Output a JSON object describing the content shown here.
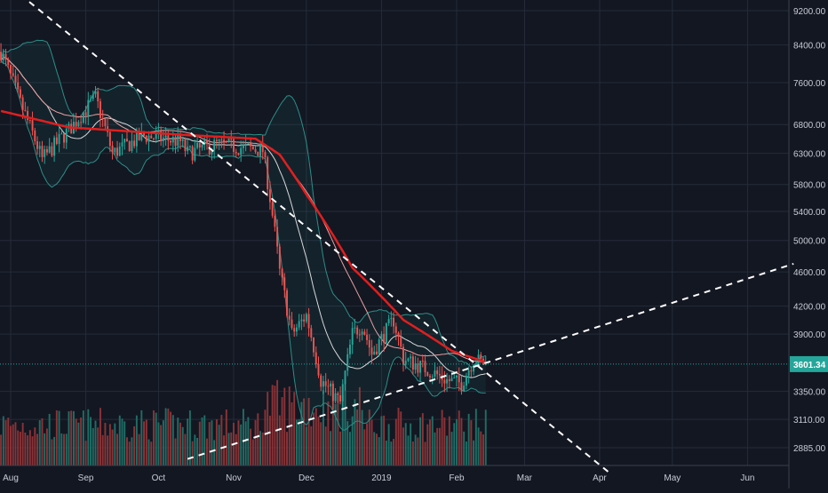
{
  "chart_data": {
    "type": "candlestick",
    "symbol_price_label": "3601.34",
    "x_ticks": [
      "Aug",
      "Sep",
      "Oct",
      "Nov",
      "Dec",
      "2019",
      "Feb",
      "Mar",
      "Apr",
      "May",
      "Jun"
    ],
    "y_ticks": [
      "9200.00",
      "8400.00",
      "7600.00",
      "6800.00",
      "6300.00",
      "5800.00",
      "5400.00",
      "5000.00",
      "4600.00",
      "4200.00",
      "3900.00",
      "3350.00",
      "3110.00",
      "2885.00"
    ],
    "y_tick_values": [
      9200,
      8400,
      7600,
      6800,
      6300,
      5800,
      5400,
      5000,
      4600,
      4200,
      3900,
      3350,
      3110,
      2885
    ],
    "y_scale": "log",
    "ylim": [
      2700,
      9600
    ],
    "grid": true,
    "current_price": 3601.34,
    "price_path_keypoints": [
      {
        "date": "2018-07-28",
        "price": 8250
      },
      {
        "date": "2018-08-05",
        "price": 7200
      },
      {
        "date": "2018-08-14",
        "price": 6200
      },
      {
        "date": "2018-08-25",
        "price": 6700
      },
      {
        "date": "2018-09-05",
        "price": 7300
      },
      {
        "date": "2018-09-12",
        "price": 6300
      },
      {
        "date": "2018-09-25",
        "price": 6600
      },
      {
        "date": "2018-10-10",
        "price": 6500
      },
      {
        "date": "2018-10-13",
        "price": 6300
      },
      {
        "date": "2018-10-25",
        "price": 6450
      },
      {
        "date": "2018-11-13",
        "price": 6350
      },
      {
        "date": "2018-11-16",
        "price": 5600
      },
      {
        "date": "2018-11-20",
        "price": 4600
      },
      {
        "date": "2018-11-25",
        "price": 3900
      },
      {
        "date": "2018-12-01",
        "price": 4100
      },
      {
        "date": "2018-12-07",
        "price": 3450
      },
      {
        "date": "2018-12-15",
        "price": 3250
      },
      {
        "date": "2018-12-20",
        "price": 3900
      },
      {
        "date": "2018-12-24",
        "price": 4000
      },
      {
        "date": "2018-12-28",
        "price": 3700
      },
      {
        "date": "2019-01-06",
        "price": 4050
      },
      {
        "date": "2019-01-10",
        "price": 3650
      },
      {
        "date": "2019-01-20",
        "price": 3550
      },
      {
        "date": "2019-01-28",
        "price": 3450
      },
      {
        "date": "2019-02-03",
        "price": 3420
      },
      {
        "date": "2019-02-08",
        "price": 3650
      },
      {
        "date": "2019-02-13",
        "price": 3601
      }
    ],
    "ma_red_keypoints": [
      {
        "date": "2018-07-28",
        "price": 7050
      },
      {
        "date": "2018-08-25",
        "price": 6750
      },
      {
        "date": "2018-10-10",
        "price": 6620
      },
      {
        "date": "2018-11-10",
        "price": 6550
      },
      {
        "date": "2018-11-20",
        "price": 6280
      },
      {
        "date": "2018-12-01",
        "price": 5650
      },
      {
        "date": "2018-12-20",
        "price": 4650
      },
      {
        "date": "2019-01-10",
        "price": 4050
      },
      {
        "date": "2019-01-30",
        "price": 3730
      },
      {
        "date": "2019-02-13",
        "price": 3620
      }
    ],
    "trendlines": [
      {
        "from": {
          "date": "2018-08-05",
          "price": 9600
        },
        "to": {
          "date": "2019-04-05",
          "price": 2700
        }
      },
      {
        "from": {
          "date": "2018-10-13",
          "price": 2800
        },
        "to": {
          "date": "2019-06-20",
          "price": 4700
        }
      }
    ],
    "colors": {
      "background": "#131722",
      "grid": "#262b3a",
      "up": "#26a69a",
      "down": "#ef5350",
      "ma_red": "#e01f1f",
      "axis_text": "#c8ccd6",
      "price_label_bg": "#26a69a"
    }
  }
}
